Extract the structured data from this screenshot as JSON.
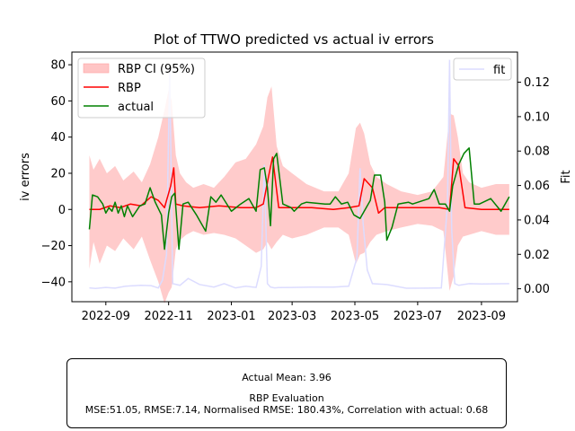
{
  "chart_data": {
    "type": "line",
    "title": "Plot of TTWO predicted vs actual iv errors",
    "ylabel": "iv errors",
    "y2label": "Fit",
    "ylim": [
      -51,
      87
    ],
    "y2lim": [
      -0.0075,
      0.1375
    ],
    "yticks": [
      -40,
      -20,
      0,
      20,
      40,
      60,
      80
    ],
    "y2ticks": [
      0.0,
      0.02,
      0.04,
      0.06,
      0.08,
      0.1,
      0.12
    ],
    "y2tick_labels": [
      "0.00",
      "0.02",
      "0.04",
      "0.06",
      "0.08",
      "0.10",
      "0.12"
    ],
    "xlim": [
      "2022-07-30",
      "2023-10-06"
    ],
    "xticks": [
      "2022-09-01",
      "2022-11-01",
      "2023-01-01",
      "2023-03-01",
      "2023-05-01",
      "2023-07-01",
      "2023-09-01"
    ],
    "xtick_labels": [
      "2022-09",
      "2022-11",
      "2023-01",
      "2023-03",
      "2023-05",
      "2023-07",
      "2023-09"
    ],
    "grid": false,
    "legend_left": [
      {
        "label": "RBP CI (95%)",
        "color": "#ffc5c5",
        "kind": "patch"
      },
      {
        "label": "RBP",
        "color": "#ff0000",
        "kind": "line"
      },
      {
        "label": "actual",
        "color": "#008000",
        "kind": "line"
      }
    ],
    "legend_right": [
      {
        "label": "fit",
        "color": "#dcdcff",
        "kind": "line"
      }
    ],
    "legend_left_position": "upper left",
    "legend_right_position": "upper right",
    "series": [
      {
        "name": "actual",
        "axis": "left",
        "color": "#008000",
        "x": [
          "2022-08-16",
          "2022-08-19",
          "2022-08-24",
          "2022-08-29",
          "2022-09-01",
          "2022-09-04",
          "2022-09-07",
          "2022-09-10",
          "2022-09-13",
          "2022-09-16",
          "2022-09-19",
          "2022-09-22",
          "2022-09-27",
          "2022-10-04",
          "2022-10-09",
          "2022-10-14",
          "2022-10-19",
          "2022-10-25",
          "2022-10-28",
          "2022-11-01",
          "2022-11-04",
          "2022-11-07",
          "2022-11-11",
          "2022-11-15",
          "2022-11-20",
          "2022-11-28",
          "2022-12-02",
          "2022-12-07",
          "2022-12-12",
          "2022-12-17",
          "2022-12-22",
          "2023-01-01",
          "2023-01-10",
          "2023-01-18",
          "2023-01-25",
          "2023-01-29",
          "2023-02-02",
          "2023-02-05",
          "2023-02-08",
          "2023-02-11",
          "2023-02-14",
          "2023-02-20",
          "2023-02-28",
          "2023-03-03",
          "2023-03-10",
          "2023-03-15",
          "2023-04-02",
          "2023-04-07",
          "2023-04-12",
          "2023-04-18",
          "2023-04-24",
          "2023-04-30",
          "2023-05-06",
          "2023-05-12",
          "2023-05-16",
          "2023-05-20",
          "2023-05-26",
          "2023-05-30",
          "2023-06-01",
          "2023-06-06",
          "2023-06-12",
          "2023-06-22",
          "2023-06-26",
          "2023-07-12",
          "2023-07-17",
          "2023-07-22",
          "2023-07-28",
          "2023-08-01",
          "2023-08-04",
          "2023-08-10",
          "2023-08-15",
          "2023-08-20",
          "2023-08-25",
          "2023-08-30",
          "2023-09-10",
          "2023-09-20",
          "2023-09-28"
        ],
        "y": [
          -11,
          8,
          7,
          3,
          -2,
          1,
          -1,
          4,
          -2,
          2,
          -4,
          2,
          -4,
          2,
          3,
          12,
          4,
          -3,
          -22,
          -2,
          7,
          9,
          -22,
          3,
          4,
          -3,
          -7,
          -12,
          7,
          4,
          8,
          -1,
          3,
          6,
          -1,
          22,
          23,
          12,
          -9,
          28,
          31,
          3,
          1,
          -1,
          3,
          4,
          3,
          3,
          7,
          3,
          4,
          -3,
          -5,
          1,
          5,
          19,
          19,
          4,
          -17,
          -10,
          3,
          4,
          3,
          6,
          11,
          3,
          3,
          -1,
          13,
          25,
          31,
          34,
          3,
          3,
          6,
          -1,
          7
        ],
        "y_values_note": "approximate"
      },
      {
        "name": "RBP",
        "axis": "left",
        "color": "#ff0000",
        "x": [
          "2022-08-16",
          "2022-08-26",
          "2022-09-05",
          "2022-09-15",
          "2022-09-25",
          "2022-10-05",
          "2022-10-15",
          "2022-10-22",
          "2022-10-28",
          "2022-11-03",
          "2022-11-06",
          "2022-11-08",
          "2022-11-15",
          "2022-12-01",
          "2022-12-20",
          "2023-01-10",
          "2023-01-25",
          "2023-02-01",
          "2023-02-06",
          "2023-02-10",
          "2023-02-16",
          "2023-03-01",
          "2023-03-20",
          "2023-04-10",
          "2023-04-25",
          "2023-05-05",
          "2023-05-10",
          "2023-05-18",
          "2023-05-24",
          "2023-05-30",
          "2023-06-10",
          "2023-07-01",
          "2023-07-22",
          "2023-08-01",
          "2023-08-05",
          "2023-08-10",
          "2023-08-16",
          "2023-09-01",
          "2023-09-28"
        ],
        "y": [
          0,
          0,
          2,
          1,
          3,
          2,
          7,
          5,
          1,
          13,
          23,
          3,
          2,
          1,
          2,
          1,
          1,
          3,
          18,
          29,
          1,
          1,
          1,
          0,
          1,
          2,
          17,
          12,
          -2,
          1,
          1,
          1,
          1,
          0,
          28,
          24,
          1,
          0,
          0
        ],
        "y_values_note": "approximate"
      },
      {
        "name": "RBP CI (95%)",
        "axis": "left",
        "color": "#ffc5c5",
        "kind": "band",
        "x": [
          "2022-08-16",
          "2022-08-20",
          "2022-08-26",
          "2022-09-02",
          "2022-09-10",
          "2022-09-18",
          "2022-09-28",
          "2022-10-06",
          "2022-10-14",
          "2022-10-22",
          "2022-10-28",
          "2022-11-01",
          "2022-11-04",
          "2022-11-08",
          "2022-11-12",
          "2022-11-18",
          "2022-11-25",
          "2022-12-05",
          "2022-12-15",
          "2022-12-25",
          "2023-01-05",
          "2023-01-15",
          "2023-01-25",
          "2023-02-01",
          "2023-02-05",
          "2023-02-09",
          "2023-02-14",
          "2023-02-20",
          "2023-03-01",
          "2023-03-15",
          "2023-04-01",
          "2023-04-15",
          "2023-04-25",
          "2023-05-02",
          "2023-05-06",
          "2023-05-10",
          "2023-05-16",
          "2023-05-22",
          "2023-06-01",
          "2023-06-15",
          "2023-07-01",
          "2023-07-15",
          "2023-07-26",
          "2023-08-01",
          "2023-08-05",
          "2023-08-09",
          "2023-08-14",
          "2023-08-20",
          "2023-09-01",
          "2023-09-15",
          "2023-09-28"
        ],
        "upper": [
          30,
          22,
          28,
          20,
          24,
          16,
          21,
          15,
          25,
          40,
          55,
          66,
          60,
          30,
          20,
          15,
          12,
          14,
          12,
          18,
          26,
          28,
          36,
          46,
          62,
          68,
          35,
          24,
          20,
          14,
          10,
          10,
          20,
          45,
          48,
          42,
          25,
          18,
          14,
          10,
          8,
          10,
          18,
          53,
          52,
          40,
          20,
          15,
          12,
          14,
          14
        ],
        "lower": [
          -33,
          -18,
          -30,
          -20,
          -23,
          -16,
          -22,
          -15,
          -28,
          -40,
          -52,
          -46,
          -43,
          -22,
          -17,
          -14,
          -12,
          -14,
          -13,
          -14,
          -16,
          -20,
          -24,
          -22,
          -18,
          -22,
          -18,
          -14,
          -16,
          -14,
          -10,
          -10,
          -14,
          -30,
          -25,
          -24,
          -18,
          -14,
          -12,
          -10,
          -8,
          -9,
          -12,
          -45,
          -37,
          -20,
          -15,
          -14,
          -12,
          -14,
          -14
        ],
        "y_values_note": "approximate"
      },
      {
        "name": "fit",
        "axis": "right",
        "color": "#dcdcff",
        "x": [
          "2022-08-16",
          "2022-08-22",
          "2022-09-01",
          "2022-09-10",
          "2022-09-20",
          "2022-10-05",
          "2022-10-15",
          "2022-10-22",
          "2022-10-26",
          "2022-10-30",
          "2022-11-02",
          "2022-11-05",
          "2022-11-12",
          "2022-11-20",
          "2022-12-01",
          "2022-12-15",
          "2022-12-25",
          "2023-01-05",
          "2023-01-15",
          "2023-01-25",
          "2023-01-30",
          "2023-02-02",
          "2023-02-05",
          "2023-02-08",
          "2023-02-12",
          "2023-02-16",
          "2023-03-01",
          "2023-03-20",
          "2023-04-10",
          "2023-04-25",
          "2023-05-03",
          "2023-05-06",
          "2023-05-09",
          "2023-05-13",
          "2023-05-18",
          "2023-06-01",
          "2023-06-20",
          "2023-07-10",
          "2023-07-24",
          "2023-07-30",
          "2023-08-01",
          "2023-08-03",
          "2023-08-06",
          "2023-08-10",
          "2023-08-20",
          "2023-09-01",
          "2023-09-28"
        ],
        "y": [
          0.0005,
          0.0002,
          0.0008,
          0.0004,
          0.0015,
          0.002,
          0.0018,
          0.0005,
          0.005,
          0.02,
          0.128,
          0.003,
          0.002,
          0.006,
          0.0025,
          0.001,
          0.003,
          0.0005,
          0.0015,
          0.0008,
          0.013,
          0.072,
          0.003,
          0.001,
          0.0005,
          0.0007,
          0.0008,
          0.001,
          0.001,
          0.0015,
          0.018,
          0.07,
          0.038,
          0.011,
          0.003,
          0.0025,
          0.0003,
          0.0004,
          0.0005,
          0.05,
          0.133,
          0.035,
          0.003,
          0.002,
          0.003,
          0.0028,
          0.003
        ],
        "y_values_note": "approximate"
      }
    ]
  },
  "stats_box": {
    "line1": "Actual Mean: 3.96",
    "line2": "RBP Evaluation",
    "line3": "MSE:51.05, RMSE:7.14, Normalised RMSE: 180.43%, Correlation with actual: 0.68"
  }
}
